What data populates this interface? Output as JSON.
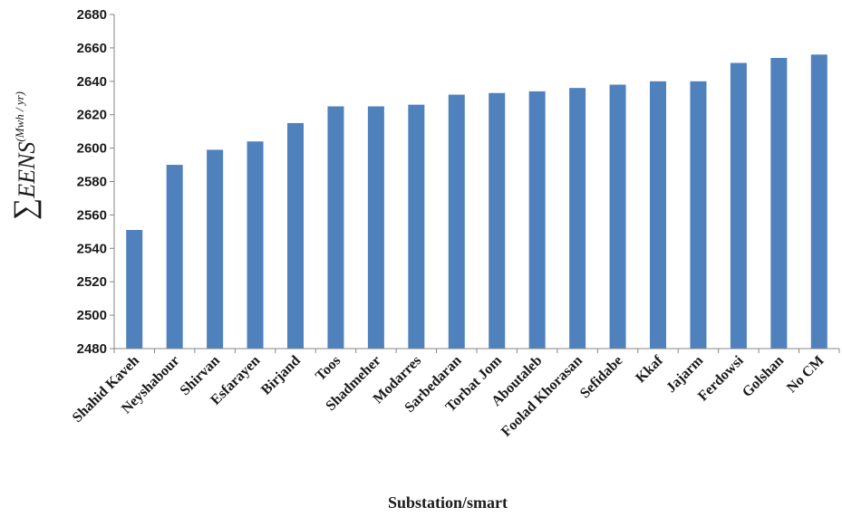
{
  "chart_data": {
    "type": "bar",
    "categories": [
      "Shahid Kaveh",
      "Neyshabour",
      "Shirvan",
      "Esfarayen",
      "Birjand",
      "Toos",
      "Shadmeher",
      "Modarres",
      "Sarbedaran",
      "Torbat Jom",
      "Aboutaleb",
      "Foolad Khorasan",
      "Sefidabe",
      "Kkaf",
      "Jajarm",
      "Ferdowsi",
      "Golshan",
      "No CM"
    ],
    "values": [
      2551,
      2590,
      2599,
      2604,
      2615,
      2625,
      2625,
      2626,
      2632,
      2633,
      2634,
      2636,
      2638,
      2640,
      2640,
      2651,
      2654,
      2656
    ],
    "xlabel": "Substation/smart",
    "ylabel": {
      "symbol": "∑",
      "main": "EENS",
      "superscript": "(Mwh / yr)"
    },
    "ylim": [
      2480,
      2680
    ],
    "yticks": [
      2480,
      2500,
      2520,
      2540,
      2560,
      2580,
      2600,
      2620,
      2640,
      2660,
      2680
    ],
    "bar_color": "#4f81bd",
    "grid": false,
    "legend": "none"
  }
}
